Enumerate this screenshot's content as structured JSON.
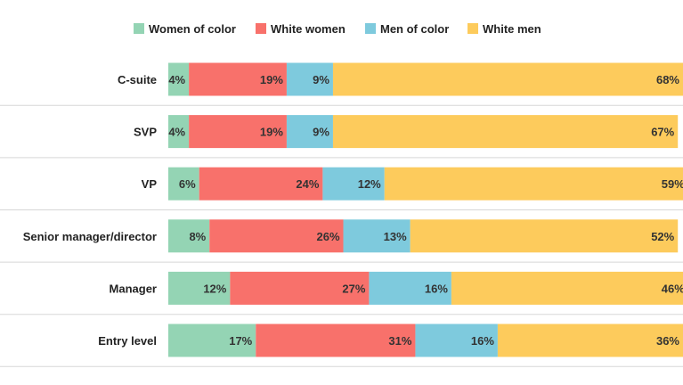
{
  "chart_data": {
    "type": "bar",
    "orientation": "horizontal",
    "stacked": true,
    "percent_scale": 100,
    "categories": [
      "C-suite",
      "SVP",
      "VP",
      "Senior manager/director",
      "Manager",
      "Entry level"
    ],
    "series": [
      {
        "name": "Women of color",
        "color": "#94d4b4",
        "values": [
          4,
          4,
          6,
          8,
          12,
          17
        ]
      },
      {
        "name": "White women",
        "color": "#f8716b",
        "values": [
          19,
          19,
          24,
          26,
          27,
          31
        ]
      },
      {
        "name": "Men of color",
        "color": "#7ecadd",
        "values": [
          9,
          9,
          12,
          13,
          16,
          16
        ]
      },
      {
        "name": "White men",
        "color": "#fdcb5c",
        "values": [
          68,
          67,
          59,
          52,
          46,
          36
        ]
      }
    ],
    "value_suffix": "%",
    "legend_position": "top",
    "grid": false,
    "title": "",
    "xlabel": "",
    "ylabel": ""
  }
}
